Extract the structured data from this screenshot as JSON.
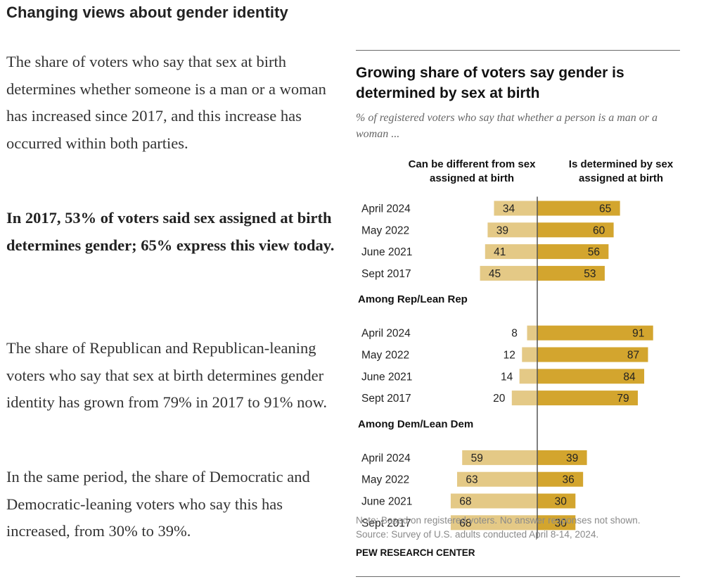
{
  "article": {
    "heading": "Changing views about gender identity",
    "paragraphs": [
      "The share of voters who say that sex at birth determines whether someone is a man or a woman has increased since 2017, and this increase has occurred within both parties.",
      "In 2017, 53% of voters said sex assigned at birth determines gender; 65% express this view today.",
      "The share of Republican and Republican-leaning voters who say that sex at birth determines gender identity has grown from 79% in 2017 to 91% now.",
      "In the same period, the share of Democratic and Democratic-leaning voters who say this has increased, from 30% to 39%."
    ]
  },
  "figure": {
    "note_line1": "Note: Based on registered voters. No answer responses not shown.",
    "note_line2": "Source: Survey of U.S. adults conducted April 8-14, 2024.",
    "brand": "PEW RESEARCH CENTER"
  },
  "colors": {
    "left_bar": "#e4c986",
    "right_bar": "#d3a52e",
    "axis_line": "#555555"
  },
  "chart_data": {
    "type": "bar",
    "orientation": "horizontal-diverging",
    "title": "Growing share of voters say gender is determined by sex at birth",
    "subtitle": "% of registered voters who say that whether a person is a man or a woman ...",
    "series": [
      {
        "name": "Can be different from sex assigned at birth",
        "side": "left",
        "color": "#e4c986"
      },
      {
        "name": "Is determined by sex assigned at birth",
        "side": "right",
        "color": "#d3a52e"
      }
    ],
    "groups": [
      {
        "label": "",
        "rows": [
          {
            "category": "April 2024",
            "left": 34,
            "right": 65
          },
          {
            "category": "May 2022",
            "left": 39,
            "right": 60
          },
          {
            "category": "June 2021",
            "left": 41,
            "right": 56
          },
          {
            "category": "Sept 2017",
            "left": 45,
            "right": 53
          }
        ]
      },
      {
        "label": "Among Rep/Lean Rep",
        "rows": [
          {
            "category": "April 2024",
            "left": 8,
            "right": 91
          },
          {
            "category": "May 2022",
            "left": 12,
            "right": 87
          },
          {
            "category": "June 2021",
            "left": 14,
            "right": 84
          },
          {
            "category": "Sept 2017",
            "left": 20,
            "right": 79
          }
        ]
      },
      {
        "label": "Among Dem/Lean Dem",
        "rows": [
          {
            "category": "April 2024",
            "left": 59,
            "right": 39
          },
          {
            "category": "May 2022",
            "left": 63,
            "right": 36
          },
          {
            "category": "June 2021",
            "left": 68,
            "right": 30
          },
          {
            "category": "Sept 2017",
            "left": 68,
            "right": 30
          }
        ]
      }
    ],
    "value_range": [
      0,
      100
    ],
    "grid": false,
    "legend": "column headers above bars"
  }
}
